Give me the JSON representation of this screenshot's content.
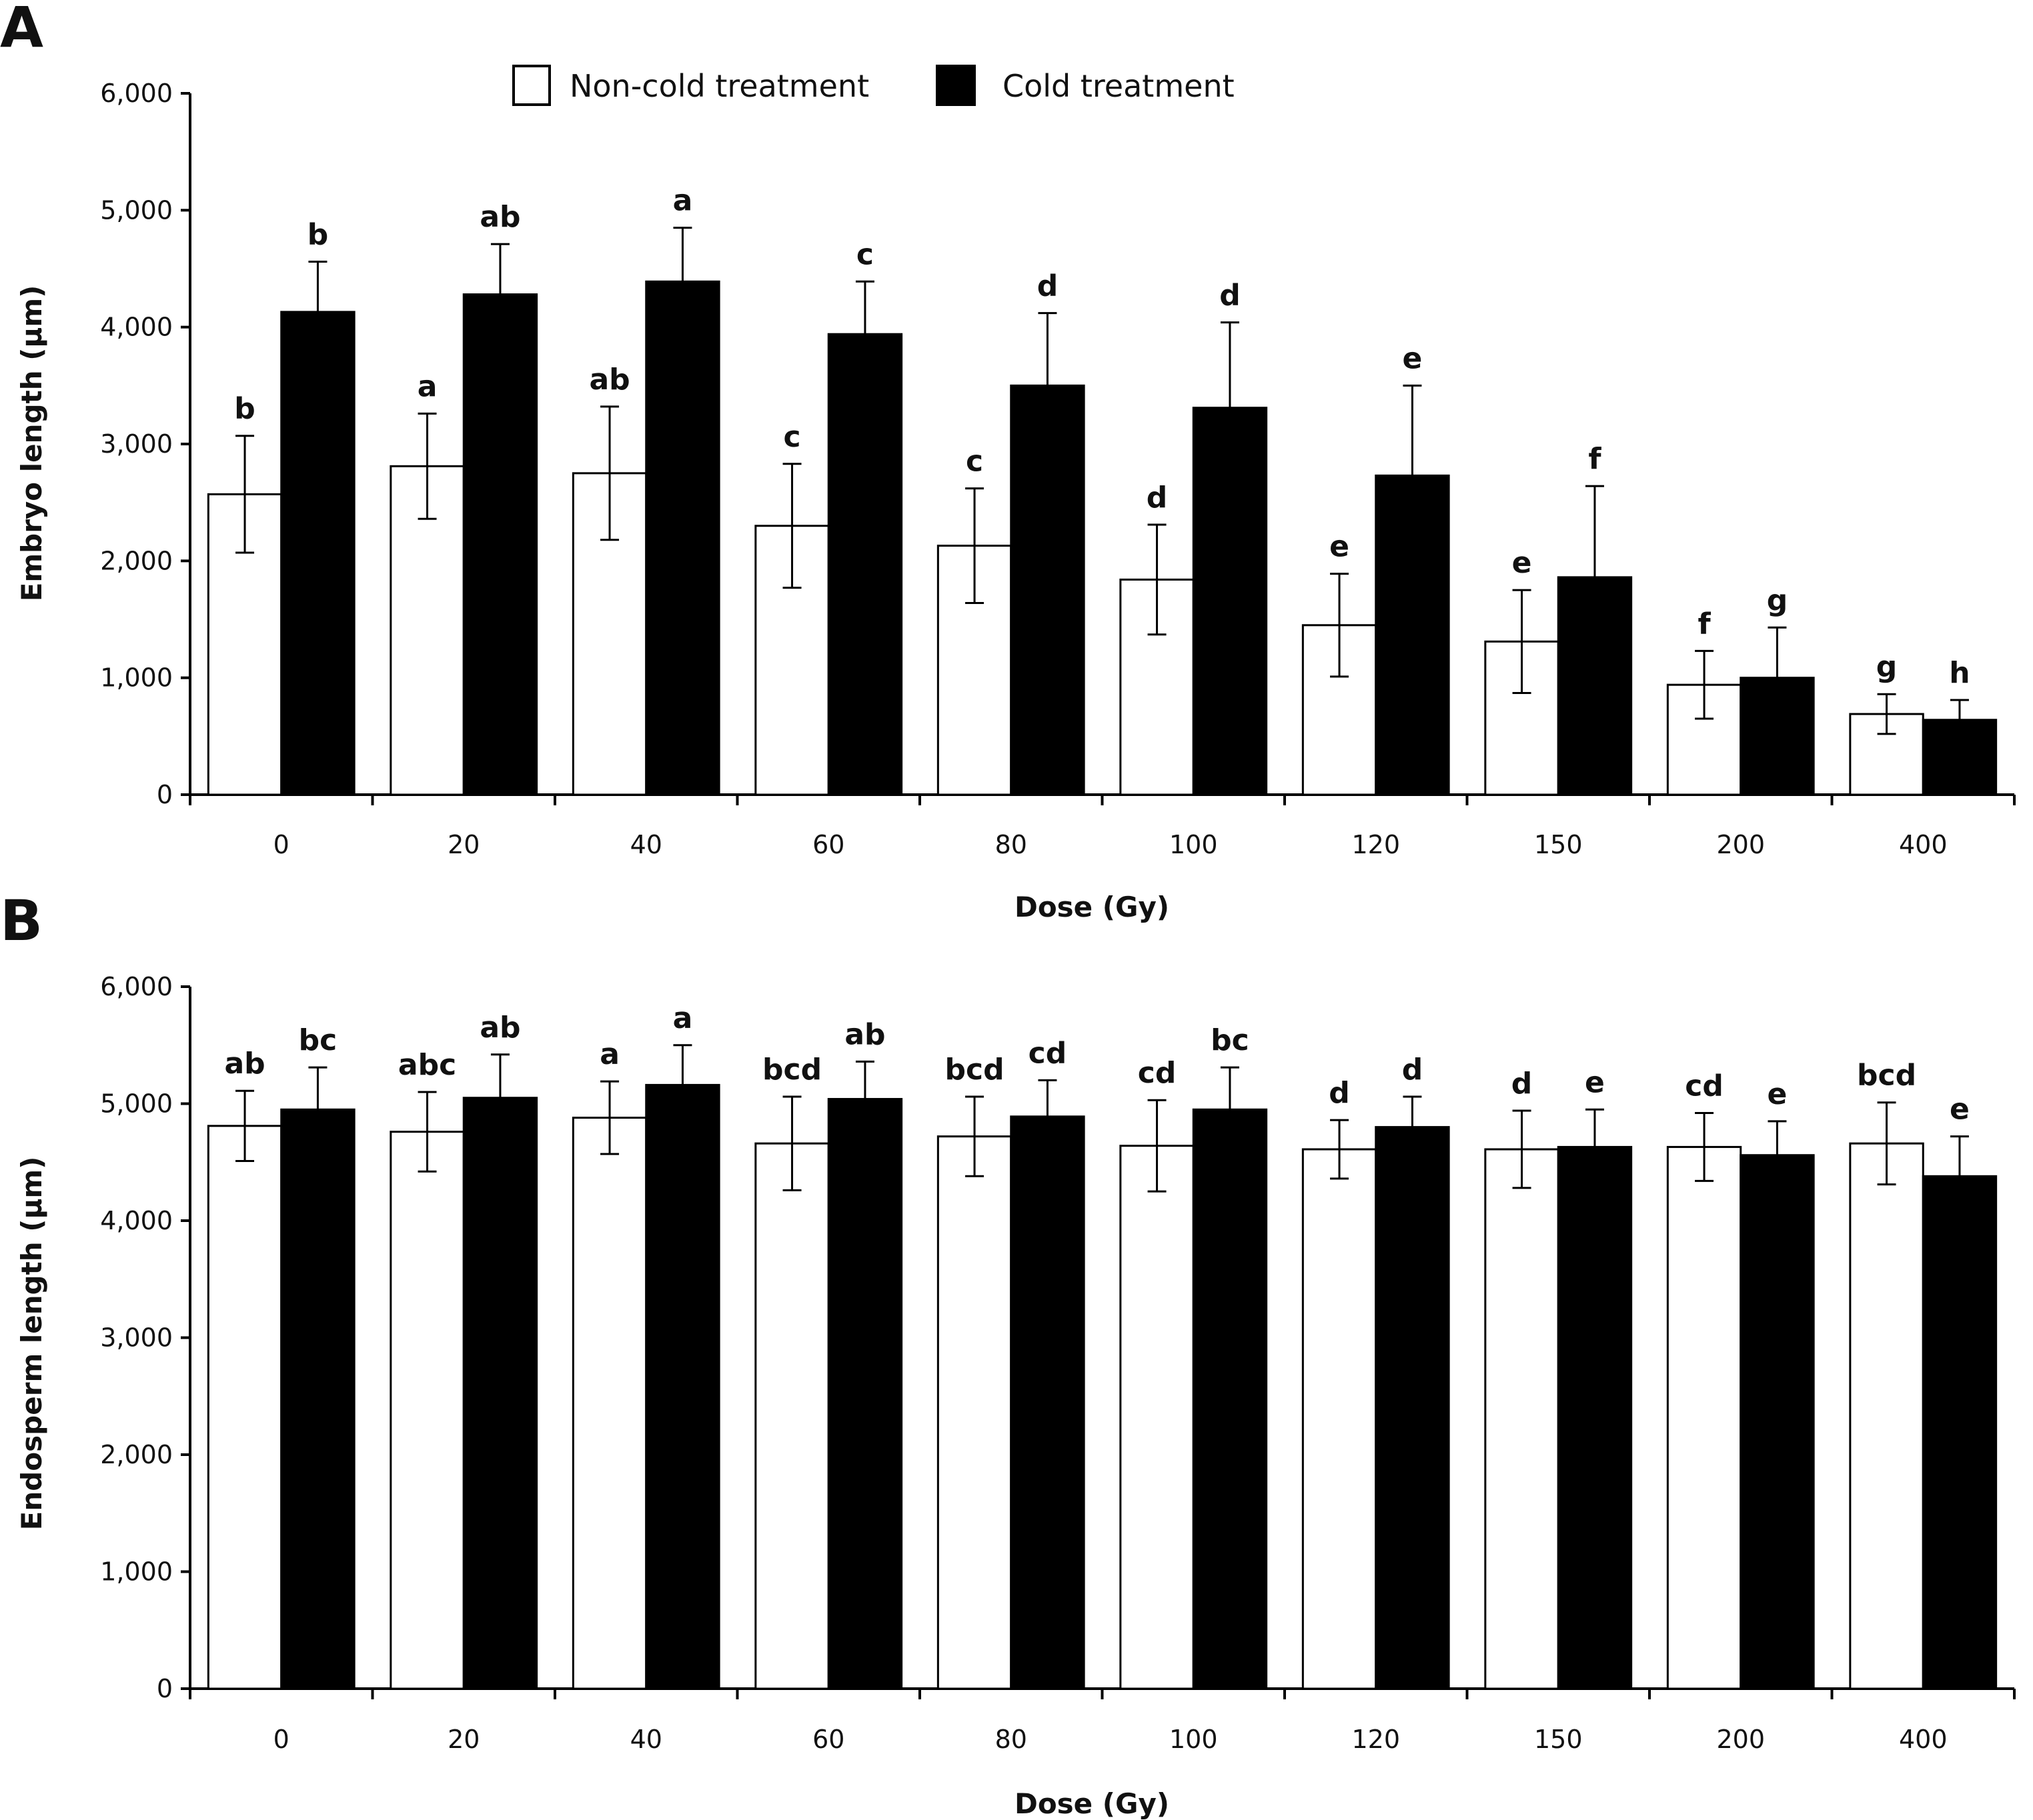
{
  "colors": {
    "non_cold": "#ffffff",
    "cold": "#000000",
    "stroke": "#000000"
  },
  "chart_data": [
    {
      "type": "bar",
      "panel_label": "A",
      "xlabel": "Dose (Gy)",
      "ylabel": "Embryo length (μm)",
      "ylim": [
        0,
        6000
      ],
      "yticks": [
        0,
        1000,
        2000,
        3000,
        4000,
        5000,
        6000
      ],
      "ytick_labels": [
        "0",
        "1,000",
        "2,000",
        "3,000",
        "4,000",
        "5,000",
        "6,000"
      ],
      "categories": [
        "0",
        "20",
        "40",
        "60",
        "80",
        "100",
        "120",
        "150",
        "200",
        "400"
      ],
      "legend": {
        "position": "top",
        "entries": [
          "Non-cold treatment",
          "Cold treatment"
        ]
      },
      "series": [
        {
          "name": "Non-cold treatment",
          "values": [
            2570,
            2810,
            2750,
            2300,
            2130,
            1840,
            1450,
            1310,
            940,
            690
          ],
          "errors": [
            500,
            450,
            570,
            530,
            490,
            470,
            440,
            440,
            290,
            170
          ],
          "letters": [
            "b",
            "a",
            "ab",
            "c",
            "c",
            "d",
            "e",
            "e",
            "f",
            "g"
          ]
        },
        {
          "name": "Cold treatment",
          "values": [
            4130,
            4280,
            4390,
            3940,
            3500,
            3310,
            2730,
            1860,
            1000,
            640
          ],
          "errors": [
            430,
            430,
            460,
            450,
            620,
            730,
            770,
            780,
            430,
            170
          ],
          "letters": [
            "b",
            "ab",
            "a",
            "c",
            "d",
            "d",
            "e",
            "f",
            "g",
            "h"
          ]
        }
      ]
    },
    {
      "type": "bar",
      "panel_label": "B",
      "xlabel": "Dose (Gy)",
      "ylabel": "Endosperm length (μm)",
      "ylim": [
        0,
        6000
      ],
      "yticks": [
        0,
        1000,
        2000,
        3000,
        4000,
        5000,
        6000
      ],
      "ytick_labels": [
        "0",
        "1,000",
        "2,000",
        "3,000",
        "4,000",
        "5,000",
        "6,000"
      ],
      "categories": [
        "0",
        "20",
        "40",
        "60",
        "80",
        "100",
        "120",
        "150",
        "200",
        "400"
      ],
      "series": [
        {
          "name": "Non-cold treatment",
          "values": [
            4810,
            4760,
            4880,
            4660,
            4720,
            4640,
            4610,
            4610,
            4630,
            4660
          ],
          "errors": [
            300,
            340,
            310,
            400,
            340,
            390,
            250,
            330,
            290,
            350
          ],
          "letters": [
            "ab",
            "abc",
            "a",
            "bcd",
            "bcd",
            "cd",
            "d",
            "d",
            "cd",
            "bcd"
          ]
        },
        {
          "name": "Cold treatment",
          "values": [
            4950,
            5050,
            5160,
            5040,
            4890,
            4950,
            4800,
            4630,
            4560,
            4380
          ],
          "errors": [
            360,
            370,
            340,
            320,
            310,
            360,
            260,
            320,
            290,
            340
          ],
          "letters": [
            "bc",
            "ab",
            "a",
            "ab",
            "cd",
            "bc",
            "d",
            "e",
            "e",
            "e"
          ]
        }
      ]
    }
  ]
}
